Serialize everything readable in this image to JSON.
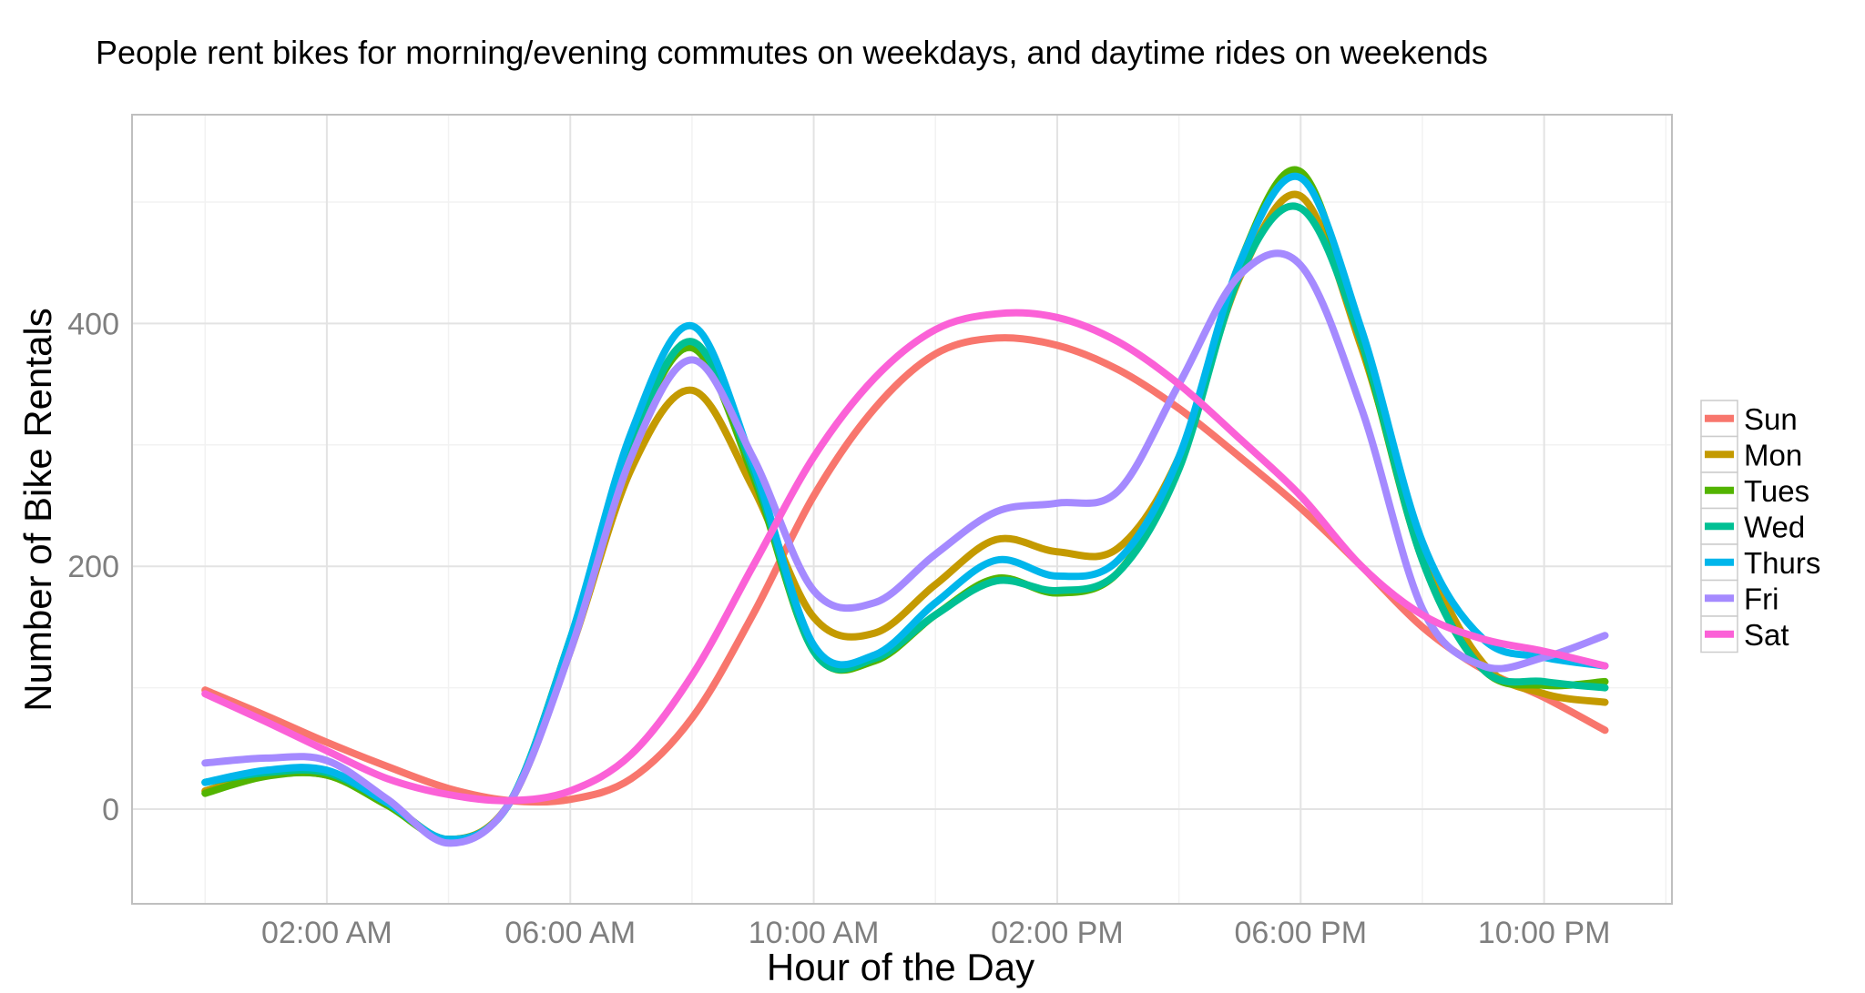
{
  "chart_data": {
    "type": "line",
    "title": "People rent bikes for morning/evening commutes on weekdays, and daytime rides on weekends",
    "xlabel": "Hour of the Day",
    "ylabel": "Number of Bike Rentals",
    "xlim": [
      -1.2,
      24.1
    ],
    "ylim": [
      -78,
      572
    ],
    "x_ticks": [
      {
        "x": 2,
        "label": "02:00 AM"
      },
      {
        "x": 6,
        "label": "06:00 AM"
      },
      {
        "x": 10,
        "label": "10:00 AM"
      },
      {
        "x": 14,
        "label": "02:00 PM"
      },
      {
        "x": 18,
        "label": "06:00 PM"
      },
      {
        "x": 22,
        "label": "10:00 PM"
      }
    ],
    "y_ticks": [
      {
        "y": 0,
        "label": "0"
      },
      {
        "y": 200,
        "label": "200"
      },
      {
        "y": 400,
        "label": "400"
      }
    ],
    "grid": true,
    "legend_position": "right",
    "x": [
      0,
      1,
      2,
      3,
      4,
      5,
      6,
      7,
      8,
      9,
      10,
      11,
      12,
      13,
      14,
      15,
      16,
      17,
      18,
      19,
      20,
      21,
      22,
      23
    ],
    "series": [
      {
        "name": "Sun",
        "color": "#F8766D",
        "values": [
          98,
          77,
          55,
          35,
          17,
          7,
          8,
          25,
          75,
          160,
          258,
          330,
          375,
          388,
          382,
          362,
          330,
          290,
          248,
          200,
          150,
          115,
          92,
          65
        ]
      },
      {
        "name": "Mon",
        "color": "#C49A00",
        "values": [
          15,
          28,
          28,
          5,
          -25,
          5,
          130,
          280,
          345,
          265,
          158,
          145,
          185,
          222,
          212,
          215,
          290,
          438,
          505,
          380,
          215,
          120,
          95,
          88
        ]
      },
      {
        "name": "Tues",
        "color": "#53B400",
        "values": [
          13,
          27,
          28,
          3,
          -25,
          5,
          140,
          300,
          380,
          275,
          130,
          122,
          160,
          190,
          178,
          195,
          285,
          450,
          525,
          385,
          205,
          115,
          102,
          105
        ]
      },
      {
        "name": "Wed",
        "color": "#00C094",
        "values": [
          22,
          30,
          30,
          5,
          -25,
          5,
          140,
          300,
          385,
          280,
          130,
          124,
          160,
          188,
          180,
          195,
          280,
          440,
          495,
          385,
          205,
          115,
          105,
          100
        ]
      },
      {
        "name": "Thurs",
        "color": "#00B6EB",
        "values": [
          22,
          32,
          32,
          5,
          -25,
          5,
          140,
          310,
          398,
          285,
          135,
          127,
          170,
          205,
          192,
          205,
          290,
          450,
          520,
          395,
          220,
          140,
          125,
          118
        ]
      },
      {
        "name": "Fri",
        "color": "#A58AFF",
        "values": [
          38,
          42,
          40,
          8,
          -28,
          5,
          130,
          290,
          370,
          290,
          180,
          170,
          210,
          245,
          252,
          262,
          350,
          440,
          448,
          330,
          165,
          118,
          125,
          143
        ]
      },
      {
        "name": "Sat",
        "color": "#FB61D7",
        "values": [
          95,
          72,
          48,
          25,
          12,
          7,
          15,
          45,
          110,
          200,
          290,
          355,
          395,
          408,
          405,
          385,
          350,
          305,
          258,
          200,
          160,
          140,
          130,
          118
        ]
      }
    ]
  }
}
